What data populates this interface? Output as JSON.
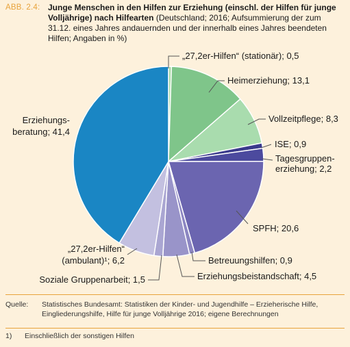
{
  "header": {
    "figure_label": "ABB. 2.4:",
    "title_bold": "Junge Menschen in den Hilfen zur Erziehung (einschl. der Hilfen für junge Volljährige) nach Hilfearten",
    "title_rest": " (Deutschland; 2016; Aufsummierung der zum 31.12. eines Jahres andauernden und der innerhalb eines Jahres beendeten Hilfen; Angaben in %)"
  },
  "chart_data": {
    "type": "pie",
    "unit": "%",
    "slices": [
      {
        "label": "„27,2er-Hilfen“ (stationär); 0,5",
        "value": 0.5,
        "color": "#a8d9a4"
      },
      {
        "label": "Heimerziehung; 13,1",
        "value": 13.1,
        "color": "#7fc58a"
      },
      {
        "label": "Vollzeitpflege; 8,3",
        "value": 8.3,
        "color": "#a9dcae"
      },
      {
        "label": "ISE; 0,9",
        "value": 0.9,
        "color": "#3a3a8c"
      },
      {
        "label": "Tagesgruppen- erziehung; 2,2",
        "value": 2.2,
        "color": "#4c4a9e"
      },
      {
        "label": "SPFH; 20,6",
        "value": 20.6,
        "color": "#6b65b0"
      },
      {
        "label": "Betreuungshilfen; 0,9",
        "value": 0.9,
        "color": "#8c86c2"
      },
      {
        "label": "Erziehungsbeistandschaft; 4,5",
        "value": 4.5,
        "color": "#9994c9"
      },
      {
        "label": "Soziale Gruppenarbeit; 1,5",
        "value": 1.5,
        "color": "#aaa6d2"
      },
      {
        "label": "„27,2er-Hilfen“ (ambulant)¹; 6,2",
        "value": 6.2,
        "color": "#c3c0e0"
      },
      {
        "label": "Erziehungs- beratung; 41,4",
        "value": 41.4,
        "color": "#1a86c4"
      }
    ]
  },
  "source": {
    "label": "Quelle:",
    "text": "Statistisches Bundesamt: Statistiken der Kinder- und Jugendhilfe – Erzieherische Hilfe, Eingliederungshilfe, Hilfe für junge Volljährige 2016; eigene Berechnungen"
  },
  "footnote": {
    "number": "1)",
    "text": "Einschließlich der sonstigen Hilfen"
  }
}
